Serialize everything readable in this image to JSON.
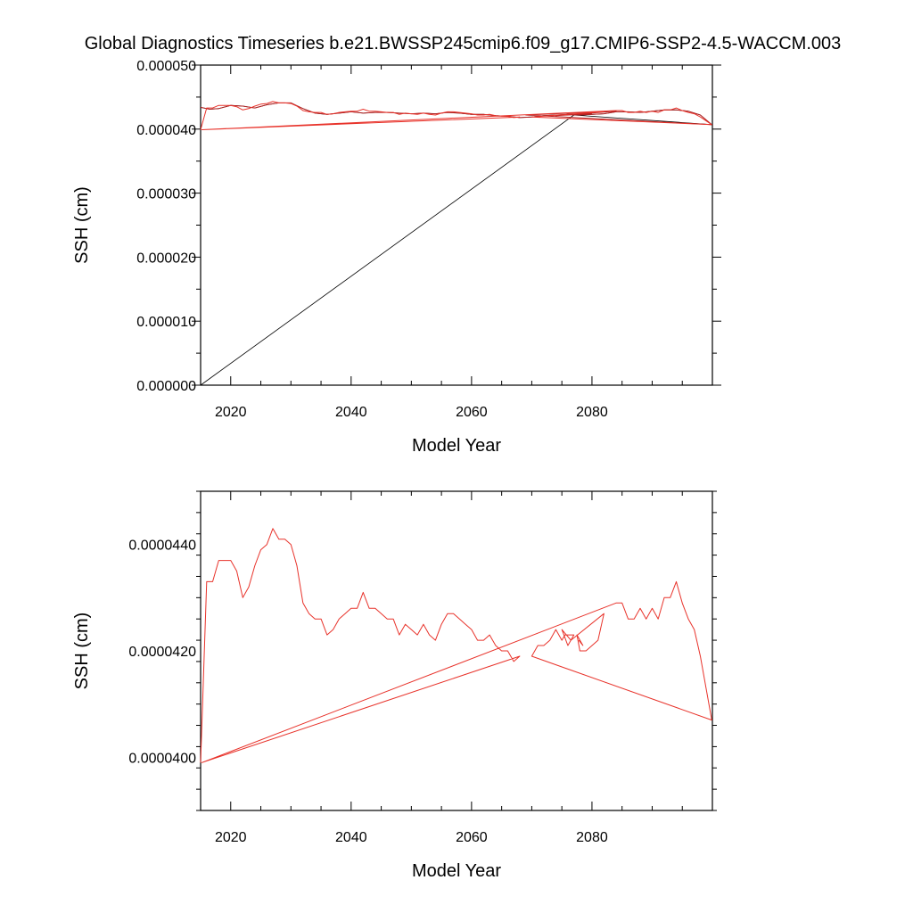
{
  "title": "Global Diagnostics Timeseries b.e21.BWSSP245cmip6.f09_g17.CMIP6-SSP2-4.5-WACCM.003",
  "colors": {
    "model": "#b22222",
    "annual": "#e8332b",
    "line": "#000000"
  },
  "chart_data": [
    {
      "type": "line",
      "xlabel": "Model Year",
      "ylabel": "SSH (cm)",
      "xlim": [
        2015,
        2100
      ],
      "ylim": [
        0.0,
        5e-05
      ],
      "x_ticks": [
        "2020",
        "2040",
        "2060",
        "2080"
      ],
      "y_ticks": [
        "0.000000",
        "0.000010",
        "0.000020",
        "0.000030",
        "0.000040",
        "0.000050"
      ],
      "series": [
        {
          "style": "black",
          "x": [
            2015.0,
            2016.5,
            2018.0,
            2020.0,
            2022.0,
            2024.0,
            2026.0,
            2028.0,
            2030.0,
            2032.0,
            2034.0,
            2036.0,
            2038.0,
            2040.0,
            2042.0,
            2044.0,
            2046.0,
            2048.0,
            2050.0,
            2052.0,
            2054.0,
            2056.0,
            2058.0,
            2060.0,
            2062.0,
            2064.0,
            2066.0,
            2068.0,
            2070.0,
            2072.0,
            2074.0,
            2076.0,
            2078.0,
            2080.0,
            2082.0,
            2084.0,
            2086.0,
            2088.0,
            2090.0,
            2092.0,
            2094.0,
            2096.0,
            2098.0,
            2099.9,
            2077.0,
            2015.0
          ],
          "y": [
            4.34e-05,
            4.31e-05,
            4.32e-05,
            4.37e-05,
            4.36e-05,
            4.33e-05,
            4.38e-05,
            4.41e-05,
            4.41e-05,
            4.32e-05,
            4.25e-05,
            4.23e-05,
            4.25e-05,
            4.27e-05,
            4.25e-05,
            4.26e-05,
            4.26e-05,
            4.25e-05,
            4.24e-05,
            4.25e-05,
            4.24e-05,
            4.26e-05,
            4.25e-05,
            4.23e-05,
            4.23e-05,
            4.21e-05,
            4.2e-05,
            4.18e-05,
            4.19e-05,
            4.21e-05,
            4.22e-05,
            4.23e-05,
            4.22e-05,
            4.23e-05,
            4.24e-05,
            4.27e-05,
            4.27e-05,
            4.26e-05,
            4.28e-05,
            4.3e-05,
            4.3e-05,
            4.28e-05,
            4.22e-05,
            4.07e-05,
            4.22e-05,
            0.0
          ]
        },
        {
          "style": "brown",
          "x": [
            2015.0,
            2016.5,
            2018.0,
            2020.0,
            2022.0,
            2024.0,
            2026.0,
            2028.0,
            2030.0,
            2032.0,
            2034.0,
            2036.0,
            2038.0,
            2040.0,
            2042.0,
            2044.0,
            2046.0,
            2048.0,
            2050.0,
            2052.0,
            2054.0,
            2056.0,
            2058.0,
            2060.0,
            2062.0,
            2064.0,
            2066.0,
            2068.0,
            2070.0,
            2072.0,
            2074.0,
            2076.0,
            2078.0,
            2080.0,
            2082.0,
            2084.0,
            2086.0,
            2088.0,
            2090.0,
            2092.0,
            2094.0,
            2096.0,
            2098.0,
            2099.9,
            2069.0,
            2084.0,
            2074.0,
            2080.0
          ],
          "y": [
            4.34e-05,
            4.31e-05,
            4.32e-05,
            4.37e-05,
            4.36e-05,
            4.33e-05,
            4.38e-05,
            4.41e-05,
            4.41e-05,
            4.32e-05,
            4.25e-05,
            4.23e-05,
            4.25e-05,
            4.27e-05,
            4.25e-05,
            4.26e-05,
            4.26e-05,
            4.25e-05,
            4.24e-05,
            4.25e-05,
            4.24e-05,
            4.26e-05,
            4.25e-05,
            4.23e-05,
            4.23e-05,
            4.21e-05,
            4.2e-05,
            4.18e-05,
            4.19e-05,
            4.21e-05,
            4.22e-05,
            4.23e-05,
            4.22e-05,
            4.23e-05,
            4.24e-05,
            4.27e-05,
            4.27e-05,
            4.26e-05,
            4.28e-05,
            4.3e-05,
            4.3e-05,
            4.28e-05,
            4.22e-05,
            4.07e-05,
            4.22e-05,
            4.28e-05,
            4.21e-05,
            4.24e-05
          ]
        },
        {
          "style": "red",
          "x": [
            2015.0,
            2016.0,
            2017.0,
            2018.0,
            2019.0,
            2020.0,
            2021.0,
            2022.0,
            2023.0,
            2024.0,
            2025.0,
            2026.0,
            2027.0,
            2028.0,
            2029.0,
            2030.0,
            2031.0,
            2032.0,
            2033.0,
            2034.0,
            2035.0,
            2036.0,
            2037.0,
            2038.0,
            2039.0,
            2040.0,
            2041.0,
            2042.0,
            2043.0,
            2044.0,
            2045.0,
            2046.0,
            2047.0,
            2048.0,
            2049.0,
            2050.0,
            2051.0,
            2052.0,
            2053.0,
            2054.0,
            2055.0,
            2056.0,
            2057.0,
            2058.0,
            2059.0,
            2060.0,
            2061.0,
            2062.0,
            2063.0,
            2064.0,
            2065.0,
            2066.0,
            2067.0,
            2068.0,
            2015.2,
            2084.0,
            2085.0,
            2086.0,
            2087.0,
            2088.0,
            2089.0,
            2090.0,
            2091.0,
            2092.0,
            2093.0,
            2094.0,
            2095.0,
            2096.0,
            2097.0,
            2098.0,
            2099.9,
            2070.0,
            2082.0
          ],
          "y": [
            3.99e-05,
            4.33e-05,
            4.33e-05,
            4.37e-05,
            4.37e-05,
            4.37e-05,
            4.35e-05,
            4.3e-05,
            4.32e-05,
            4.36e-05,
            4.39e-05,
            4.4e-05,
            4.43e-05,
            4.41e-05,
            4.41e-05,
            4.4e-05,
            4.36e-05,
            4.29e-05,
            4.27e-05,
            4.26e-05,
            4.26e-05,
            4.23e-05,
            4.24e-05,
            4.26e-05,
            4.27e-05,
            4.28e-05,
            4.28e-05,
            4.31e-05,
            4.28e-05,
            4.28e-05,
            4.27e-05,
            4.26e-05,
            4.26e-05,
            4.23e-05,
            4.25e-05,
            4.24e-05,
            4.23e-05,
            4.25e-05,
            4.23e-05,
            4.22e-05,
            4.25e-05,
            4.27e-05,
            4.27e-05,
            4.26e-05,
            4.25e-05,
            4.24e-05,
            4.22e-05,
            4.22e-05,
            4.23e-05,
            4.21e-05,
            4.2e-05,
            4.2e-05,
            4.18e-05,
            4.19e-05,
            3.99e-05,
            4.29e-05,
            4.29e-05,
            4.26e-05,
            4.26e-05,
            4.28e-05,
            4.26e-05,
            4.28e-05,
            4.26e-05,
            4.3e-05,
            4.3e-05,
            4.33e-05,
            4.29e-05,
            4.26e-05,
            4.24e-05,
            4.19e-05,
            4.07e-05,
            4.19e-05,
            4.27e-05
          ]
        }
      ]
    },
    {
      "type": "line",
      "xlabel": "Model Year",
      "ylabel": "SSH (cm)",
      "xlim": [
        2015,
        2100
      ],
      "ylim": [
        3.9e-05,
        4.5e-05
      ],
      "x_ticks": [
        "2020",
        "2040",
        "2060",
        "2080"
      ],
      "y_ticks": [
        "0.0000400",
        "0.0000420",
        "0.0000440"
      ],
      "series": [
        {
          "style": "red",
          "x": [
            2015.0,
            2016.0,
            2017.0,
            2018.0,
            2019.0,
            2020.0,
            2021.0,
            2022.0,
            2023.0,
            2024.0,
            2025.0,
            2026.0,
            2027.0,
            2028.0,
            2029.0,
            2030.0,
            2031.0,
            2032.0,
            2033.0,
            2034.0,
            2035.0,
            2036.0,
            2037.0,
            2038.0,
            2039.0,
            2040.0,
            2041.0,
            2042.0,
            2043.0,
            2044.0,
            2045.0,
            2046.0,
            2047.0,
            2048.0,
            2049.0,
            2050.0,
            2051.0,
            2052.0,
            2053.0,
            2054.0,
            2055.0,
            2056.0,
            2057.0,
            2058.0,
            2059.0,
            2060.0,
            2061.0,
            2062.0,
            2063.0,
            2064.0,
            2065.0,
            2066.0,
            2067.0,
            2068.0,
            2015.2,
            2084.0,
            2085.0,
            2086.0,
            2087.0,
            2088.0,
            2089.0,
            2090.0,
            2091.0,
            2092.0,
            2093.0,
            2094.0,
            2095.0,
            2096.0,
            2097.0,
            2098.0,
            2099.9,
            2070.0,
            2071.0,
            2072.0,
            2073.0,
            2074.0,
            2075.0,
            2075.5,
            2077.0,
            2076.0,
            2075.0,
            2076.5,
            2082.0,
            2081.0,
            2079.0,
            2078.0,
            2077.5,
            2078.5,
            2077.8
          ],
          "y": [
            3.99e-05,
            4.33e-05,
            4.33e-05,
            4.37e-05,
            4.37e-05,
            4.37e-05,
            4.35e-05,
            4.3e-05,
            4.32e-05,
            4.36e-05,
            4.39e-05,
            4.4e-05,
            4.43e-05,
            4.41e-05,
            4.41e-05,
            4.4e-05,
            4.36e-05,
            4.29e-05,
            4.27e-05,
            4.26e-05,
            4.26e-05,
            4.23e-05,
            4.24e-05,
            4.26e-05,
            4.27e-05,
            4.28e-05,
            4.28e-05,
            4.31e-05,
            4.28e-05,
            4.28e-05,
            4.27e-05,
            4.26e-05,
            4.26e-05,
            4.23e-05,
            4.25e-05,
            4.24e-05,
            4.23e-05,
            4.25e-05,
            4.23e-05,
            4.22e-05,
            4.25e-05,
            4.27e-05,
            4.27e-05,
            4.26e-05,
            4.25e-05,
            4.24e-05,
            4.22e-05,
            4.22e-05,
            4.23e-05,
            4.21e-05,
            4.2e-05,
            4.2e-05,
            4.18e-05,
            4.19e-05,
            3.99e-05,
            4.29e-05,
            4.29e-05,
            4.26e-05,
            4.26e-05,
            4.28e-05,
            4.26e-05,
            4.28e-05,
            4.26e-05,
            4.3e-05,
            4.3e-05,
            4.33e-05,
            4.29e-05,
            4.26e-05,
            4.24e-05,
            4.19e-05,
            4.07e-05,
            4.19e-05,
            4.21e-05,
            4.21e-05,
            4.22e-05,
            4.24e-05,
            4.22e-05,
            4.23e-05,
            4.23e-05,
            4.21e-05,
            4.24e-05,
            4.22e-05,
            4.27e-05,
            4.22e-05,
            4.2e-05,
            4.2e-05,
            4.23e-05,
            4.21e-05,
            4.22e-05
          ]
        }
      ]
    }
  ]
}
